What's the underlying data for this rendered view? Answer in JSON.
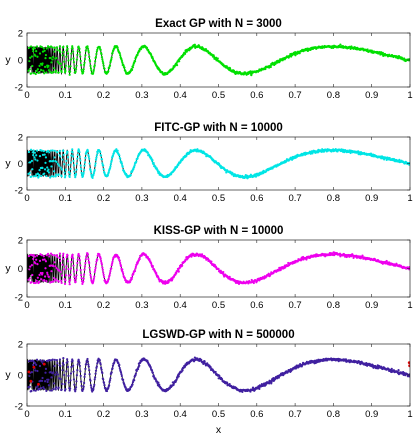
{
  "xlabel": "x",
  "chart_data": [
    {
      "type": "scatter",
      "title": "Exact GP with N = 3000",
      "xlabel": "",
      "ylabel": "y",
      "xlim": [
        0,
        1
      ],
      "ylim": [
        -2,
        2
      ],
      "xticks": [
        "0",
        "0.1",
        "0.2",
        "0.3",
        "0.4",
        "0.5",
        "0.6",
        "0.7",
        "0.8",
        "0.9",
        "1"
      ],
      "yticks": [
        "-2",
        "0",
        "2"
      ],
      "grid": false,
      "series": [
        {
          "kind": "line",
          "function": "sin(2*pi*(x+0.003)^-1)",
          "color": "#000000",
          "x_range": [
            0.0,
            1.0
          ]
        },
        {
          "kind": "markers",
          "n_points": 3000,
          "noise_sd": 0.05,
          "color": "#00e000"
        }
      ]
    },
    {
      "type": "scatter",
      "title": "FITC-GP with N = 10000",
      "xlabel": "",
      "ylabel": "y",
      "xlim": [
        0,
        1
      ],
      "ylim": [
        -2,
        2
      ],
      "xticks": [
        "0",
        "0.1",
        "0.2",
        "0.3",
        "0.4",
        "0.5",
        "0.6",
        "0.7",
        "0.8",
        "0.9",
        "1"
      ],
      "yticks": [
        "-2",
        "0",
        "2"
      ],
      "grid": false,
      "series": [
        {
          "kind": "line",
          "function": "sin(2*pi*(x+0.003)^-1)",
          "color": "#000000",
          "x_range": [
            0.0,
            1.0
          ]
        },
        {
          "kind": "markers",
          "n_points": 10000,
          "noise_sd": 0.05,
          "color": "#00e5e5"
        }
      ]
    },
    {
      "type": "scatter",
      "title": "KISS-GP with N = 10000",
      "xlabel": "",
      "ylabel": "y",
      "xlim": [
        0,
        1
      ],
      "ylim": [
        -2,
        2
      ],
      "xticks": [
        "0",
        "0.1",
        "0.2",
        "0.3",
        "0.4",
        "0.5",
        "0.6",
        "0.7",
        "0.8",
        "0.9",
        "1"
      ],
      "yticks": [
        "-2",
        "0",
        "2"
      ],
      "grid": false,
      "series": [
        {
          "kind": "line",
          "function": "sin(2*pi*(x+0.003)^-1)",
          "color": "#000000",
          "x_range": [
            0.0,
            1.0
          ]
        },
        {
          "kind": "markers",
          "n_points": 10000,
          "noise_sd": 0.05,
          "color": "#ee00ee"
        }
      ]
    },
    {
      "type": "scatter",
      "title": "LGSWD-GP with N = 500000",
      "xlabel": "x",
      "ylabel": "y",
      "xlim": [
        0,
        1
      ],
      "ylim": [
        -2,
        2
      ],
      "xticks": [
        "0",
        "0.1",
        "0.2",
        "0.3",
        "0.4",
        "0.5",
        "0.6",
        "0.7",
        "0.8",
        "0.9",
        "1"
      ],
      "yticks": [
        "-2",
        "0",
        "2"
      ],
      "grid": false,
      "series": [
        {
          "kind": "line",
          "function": "sin(2*pi*(x+0.003)^-1)",
          "color": "#000000",
          "x_range": [
            0.0,
            1.0
          ]
        },
        {
          "kind": "markers",
          "n_points": 500000,
          "noise_sd": 0.05,
          "color": "#4020a0"
        },
        {
          "kind": "markers",
          "color": "#e00000"
        }
      ]
    }
  ]
}
